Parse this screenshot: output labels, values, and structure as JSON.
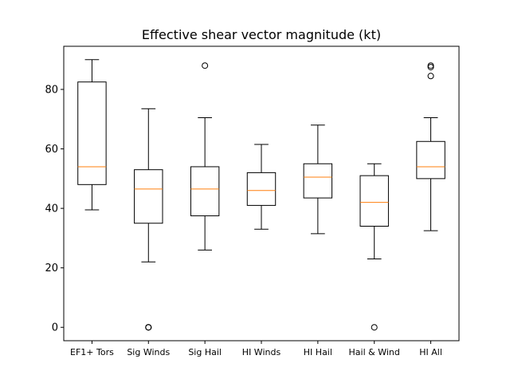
{
  "chart_data": {
    "type": "box",
    "title": "Effective shear vector magnitude (kt)",
    "xlabel": "",
    "ylabel": "",
    "ylim": [
      -4.5,
      94.5
    ],
    "yticks": [
      0,
      20,
      40,
      60,
      80
    ],
    "grid": false,
    "categories": [
      "EF1+ Tors",
      "Sig Winds",
      "Sig Hail",
      "HI Winds",
      "HI Hail",
      "Hail & Wind",
      "HI All"
    ],
    "boxes": [
      {
        "whislo": 39.5,
        "q1": 48.0,
        "med": 54.0,
        "q3": 82.5,
        "whishi": 90.0,
        "fliers": []
      },
      {
        "whislo": 22.0,
        "q1": 35.0,
        "med": 46.5,
        "q3": 53.0,
        "whishi": 73.5,
        "fliers": [
          0,
          0,
          0
        ]
      },
      {
        "whislo": 26.0,
        "q1": 37.5,
        "med": 46.5,
        "q3": 54.0,
        "whishi": 70.5,
        "fliers": [
          88.0
        ]
      },
      {
        "whislo": 33.0,
        "q1": 41.0,
        "med": 46.0,
        "q3": 52.0,
        "whishi": 61.5,
        "fliers": []
      },
      {
        "whislo": 31.5,
        "q1": 43.5,
        "med": 50.5,
        "q3": 55.0,
        "whishi": 68.0,
        "fliers": []
      },
      {
        "whislo": 23.0,
        "q1": 34.0,
        "med": 42.0,
        "q3": 51.0,
        "whishi": 55.0,
        "fliers": [
          0
        ]
      },
      {
        "whislo": 32.5,
        "q1": 50.0,
        "med": 54.0,
        "q3": 62.5,
        "whishi": 70.5,
        "fliers": [
          88.0,
          87.5,
          84.5
        ]
      }
    ],
    "colors": {
      "box": "#000000",
      "median": "#ff7f0e",
      "axis": "#000000"
    }
  }
}
